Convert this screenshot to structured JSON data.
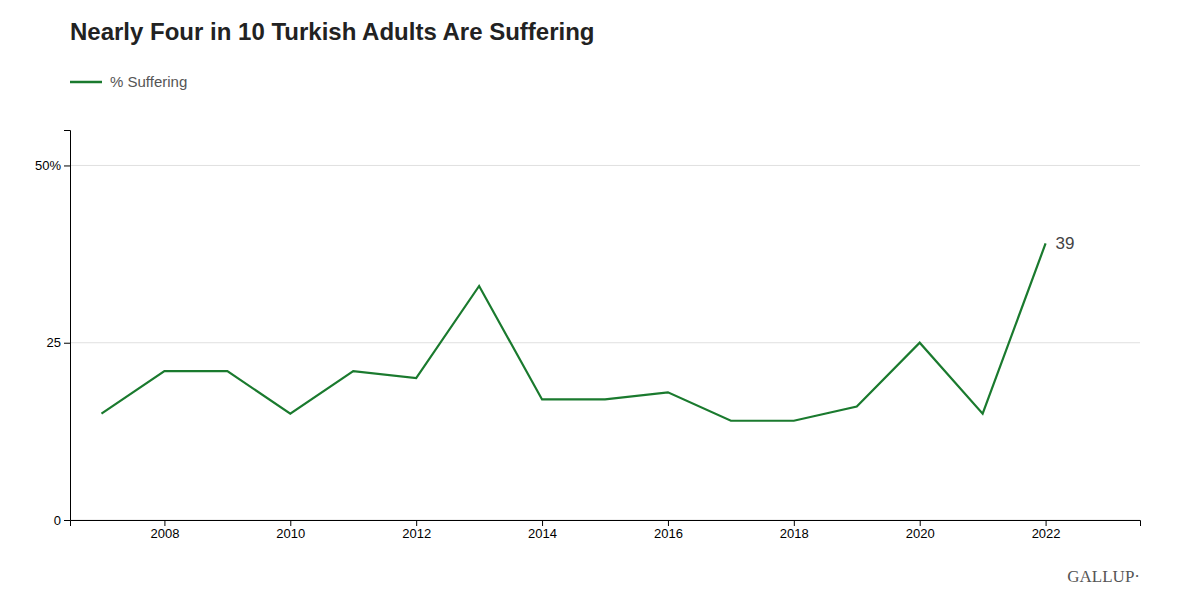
{
  "chart_data": {
    "type": "line",
    "title": "Nearly Four in 10 Turkish Adults Are Suffering",
    "x": [
      2007,
      2008,
      2009,
      2010,
      2011,
      2012,
      2013,
      2014,
      2015,
      2016,
      2017,
      2018,
      2019,
      2020,
      2021,
      2022
    ],
    "series": [
      {
        "name": "% Suffering",
        "color": "#1a7a2e",
        "values": [
          15,
          21,
          21,
          15,
          21,
          20,
          33,
          17,
          17,
          18,
          14,
          14,
          16,
          25,
          15,
          39
        ]
      }
    ],
    "xlim": [
      2006.5,
      2023.5
    ],
    "xticks": [
      2008,
      2010,
      2012,
      2014,
      2016,
      2018,
      2020,
      2022
    ],
    "ylim": [
      0,
      55
    ],
    "yticks": [
      0,
      25,
      {
        "value": 50,
        "label": "50%"
      }
    ],
    "grid": true,
    "legend": "top",
    "annotations": [
      {
        "text": "39",
        "x": 2022,
        "y": 39
      },
      {
        "text": "GALLUP·"
      }
    ]
  }
}
